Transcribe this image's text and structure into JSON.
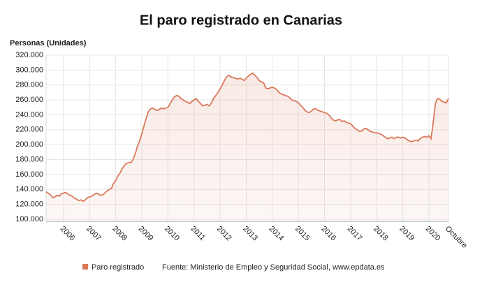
{
  "chart_data": {
    "type": "line",
    "title": "El paro registrado en Canarias",
    "y_axis_label": "Personas (Unidades)",
    "source": "Fuente: Ministerio de Empleo y Seguridad Social, www.epdata.es",
    "categories": [
      null,
      null,
      null,
      null,
      null,
      null,
      null,
      null,
      "2006",
      null,
      null,
      null,
      null,
      null,
      null,
      null,
      null,
      null,
      null,
      null,
      "2007",
      null,
      null,
      null,
      null,
      null,
      null,
      null,
      null,
      null,
      null,
      null,
      "2008",
      null,
      null,
      null,
      null,
      null,
      null,
      null,
      null,
      null,
      null,
      null,
      "2009",
      null,
      null,
      null,
      null,
      null,
      null,
      null,
      null,
      null,
      null,
      null,
      "2010",
      null,
      null,
      null,
      null,
      null,
      null,
      null,
      null,
      null,
      null,
      null,
      "2011",
      null,
      null,
      null,
      null,
      null,
      null,
      null,
      null,
      null,
      null,
      null,
      "2012",
      null,
      null,
      null,
      null,
      null,
      null,
      null,
      null,
      null,
      null,
      null,
      "2013",
      null,
      null,
      null,
      null,
      null,
      null,
      null,
      null,
      null,
      null,
      null,
      "2014",
      null,
      null,
      null,
      null,
      null,
      null,
      null,
      null,
      null,
      null,
      null,
      "2015",
      null,
      null,
      null,
      null,
      null,
      null,
      null,
      null,
      null,
      null,
      null,
      "2016",
      null,
      null,
      null,
      null,
      null,
      null,
      null,
      null,
      null,
      null,
      null,
      "2017",
      null,
      null,
      null,
      null,
      null,
      null,
      null,
      null,
      null,
      null,
      null,
      "2018",
      null,
      null,
      null,
      null,
      null,
      null,
      null,
      null,
      null,
      null,
      null,
      "2019",
      null,
      null,
      null,
      null,
      null,
      null,
      null,
      null,
      null,
      null,
      null,
      "2020",
      null,
      null,
      null,
      null,
      null,
      null,
      null,
      null,
      "Octubre"
    ],
    "series": [
      {
        "name": "Paro registrado",
        "color": "#d9795a",
        "values": [
          137000,
          135000,
          133000,
          129000,
          130000,
          132000,
          131000,
          134000,
          135000,
          136000,
          134000,
          132000,
          131000,
          128000,
          127000,
          125000,
          126000,
          124000,
          126000,
          129000,
          130000,
          131000,
          133000,
          135000,
          134000,
          132000,
          133000,
          135000,
          138000,
          140000,
          141000,
          148000,
          152000,
          158000,
          162000,
          168000,
          172000,
          175000,
          176000,
          176000,
          180000,
          188000,
          198000,
          205000,
          215000,
          225000,
          235000,
          244000,
          248000,
          249000,
          247000,
          246000,
          247000,
          249000,
          248000,
          249000,
          250000,
          255000,
          260000,
          264000,
          266000,
          265000,
          262000,
          260000,
          258000,
          257000,
          255000,
          258000,
          260000,
          262000,
          258000,
          255000,
          252000,
          253000,
          254000,
          252000,
          256000,
          262000,
          266000,
          270000,
          275000,
          280000,
          286000,
          291000,
          293000,
          291000,
          290000,
          289000,
          288000,
          289000,
          288000,
          286000,
          289000,
          292000,
          294000,
          296000,
          293000,
          290000,
          286000,
          284000,
          283000,
          276000,
          275000,
          276000,
          277000,
          276000,
          274000,
          270000,
          268000,
          267000,
          266000,
          265000,
          263000,
          260000,
          259000,
          258000,
          256000,
          253000,
          250000,
          246000,
          244000,
          243000,
          245000,
          248000,
          248000,
          246000,
          245000,
          244000,
          243000,
          242000,
          240000,
          236000,
          233000,
          232000,
          233000,
          234000,
          231000,
          232000,
          230000,
          229000,
          228000,
          225000,
          222000,
          220000,
          218000,
          218000,
          221000,
          222000,
          220000,
          218000,
          217000,
          216000,
          216000,
          215000,
          214000,
          212000,
          210000,
          208000,
          209000,
          210000,
          208000,
          210000,
          210000,
          209000,
          210000,
          209000,
          207000,
          205000,
          204000,
          205000,
          206000,
          205000,
          208000,
          210000,
          211000,
          210000,
          212000,
          208000,
          230000,
          255000,
          262000,
          261000,
          258000,
          257000,
          256000,
          262000
        ]
      }
    ],
    "ylim": [
      100000,
      320000
    ],
    "yticks": [
      {
        "value": 100000,
        "label": "100.000"
      },
      {
        "value": 120000,
        "label": "120.000"
      },
      {
        "value": 140000,
        "label": "140.000"
      },
      {
        "value": 160000,
        "label": "160.000"
      },
      {
        "value": 180000,
        "label": "180.000"
      },
      {
        "value": 200000,
        "label": "200.000"
      },
      {
        "value": 220000,
        "label": "220.000"
      },
      {
        "value": 240000,
        "label": "240.000"
      },
      {
        "value": 260000,
        "label": "260.000"
      },
      {
        "value": 280000,
        "label": "280.000"
      },
      {
        "value": 300000,
        "label": "300.000"
      },
      {
        "value": 320000,
        "label": "320.000"
      }
    ],
    "grid": true,
    "legend": "bottom"
  }
}
